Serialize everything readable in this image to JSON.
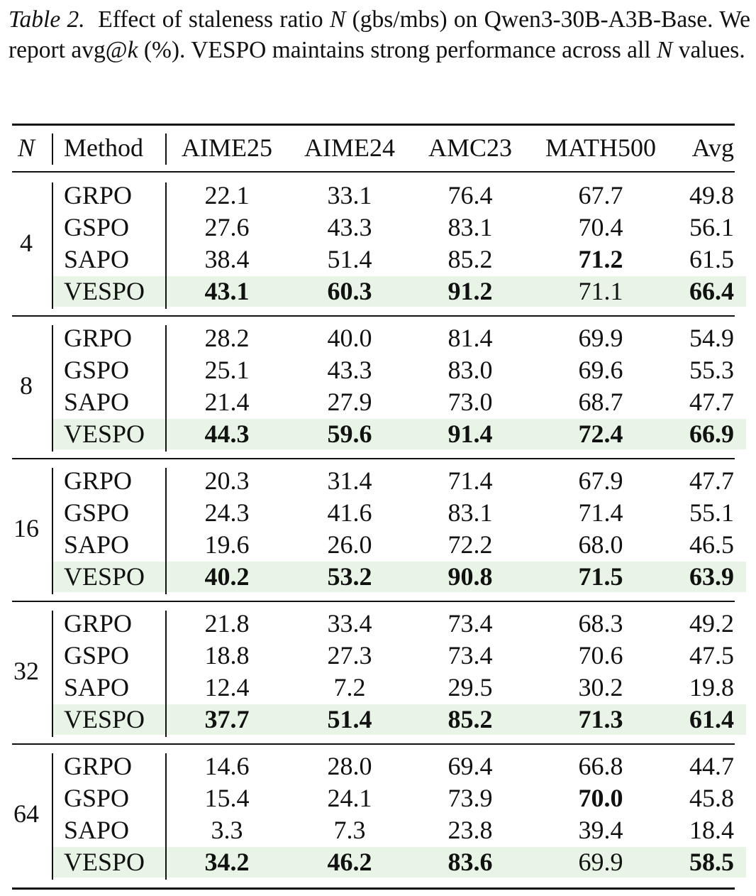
{
  "caption": {
    "label": "Table 2.",
    "parts": [
      "Effect of staleness ratio ",
      "N",
      " (gbs/mbs) on Qwen3-30B-A3B-Base. We report avg@",
      "k",
      " (%). VESPO maintains strong performance across all ",
      "N",
      " values."
    ]
  },
  "table": {
    "header": [
      "N",
      "Method",
      "AIME25",
      "AIME24",
      "AMC23",
      "MATH500",
      "Avg"
    ],
    "groups": [
      {
        "n": "4",
        "rows": [
          {
            "method": "GRPO",
            "values": [
              "22.1",
              "33.1",
              "76.4",
              "67.7",
              "49.8"
            ],
            "bold": [
              false,
              false,
              false,
              false,
              false
            ]
          },
          {
            "method": "GSPO",
            "values": [
              "27.6",
              "43.3",
              "83.1",
              "70.4",
              "56.1"
            ],
            "bold": [
              false,
              false,
              false,
              false,
              false
            ]
          },
          {
            "method": "SAPO",
            "values": [
              "38.4",
              "51.4",
              "85.2",
              "71.2",
              "61.5"
            ],
            "bold": [
              false,
              false,
              false,
              true,
              false
            ]
          },
          {
            "method": "VESPO",
            "values": [
              "43.1",
              "60.3",
              "91.2",
              "71.1",
              "66.4"
            ],
            "bold": [
              true,
              true,
              true,
              false,
              true
            ],
            "highlight": true
          }
        ]
      },
      {
        "n": "8",
        "rows": [
          {
            "method": "GRPO",
            "values": [
              "28.2",
              "40.0",
              "81.4",
              "69.9",
              "54.9"
            ],
            "bold": [
              false,
              false,
              false,
              false,
              false
            ]
          },
          {
            "method": "GSPO",
            "values": [
              "25.1",
              "43.3",
              "83.0",
              "69.6",
              "55.3"
            ],
            "bold": [
              false,
              false,
              false,
              false,
              false
            ]
          },
          {
            "method": "SAPO",
            "values": [
              "21.4",
              "27.9",
              "73.0",
              "68.7",
              "47.7"
            ],
            "bold": [
              false,
              false,
              false,
              false,
              false
            ]
          },
          {
            "method": "VESPO",
            "values": [
              "44.3",
              "59.6",
              "91.4",
              "72.4",
              "66.9"
            ],
            "bold": [
              true,
              true,
              true,
              true,
              true
            ],
            "highlight": true
          }
        ]
      },
      {
        "n": "16",
        "rows": [
          {
            "method": "GRPO",
            "values": [
              "20.3",
              "31.4",
              "71.4",
              "67.9",
              "47.7"
            ],
            "bold": [
              false,
              false,
              false,
              false,
              false
            ]
          },
          {
            "method": "GSPO",
            "values": [
              "24.3",
              "41.6",
              "83.1",
              "71.4",
              "55.1"
            ],
            "bold": [
              false,
              false,
              false,
              false,
              false
            ]
          },
          {
            "method": "SAPO",
            "values": [
              "19.6",
              "26.0",
              "72.2",
              "68.0",
              "46.5"
            ],
            "bold": [
              false,
              false,
              false,
              false,
              false
            ]
          },
          {
            "method": "VESPO",
            "values": [
              "40.2",
              "53.2",
              "90.8",
              "71.5",
              "63.9"
            ],
            "bold": [
              true,
              true,
              true,
              true,
              true
            ],
            "highlight": true
          }
        ]
      },
      {
        "n": "32",
        "rows": [
          {
            "method": "GRPO",
            "values": [
              "21.8",
              "33.4",
              "73.4",
              "68.3",
              "49.2"
            ],
            "bold": [
              false,
              false,
              false,
              false,
              false
            ]
          },
          {
            "method": "GSPO",
            "values": [
              "18.8",
              "27.3",
              "73.4",
              "70.6",
              "47.5"
            ],
            "bold": [
              false,
              false,
              false,
              false,
              false
            ]
          },
          {
            "method": "SAPO",
            "values": [
              "12.4",
              "7.2",
              "29.5",
              "30.2",
              "19.8"
            ],
            "bold": [
              false,
              false,
              false,
              false,
              false
            ]
          },
          {
            "method": "VESPO",
            "values": [
              "37.7",
              "51.4",
              "85.2",
              "71.3",
              "61.4"
            ],
            "bold": [
              true,
              true,
              true,
              true,
              true
            ],
            "highlight": true
          }
        ]
      },
      {
        "n": "64",
        "rows": [
          {
            "method": "GRPO",
            "values": [
              "14.6",
              "28.0",
              "69.4",
              "66.8",
              "44.7"
            ],
            "bold": [
              false,
              false,
              false,
              false,
              false
            ]
          },
          {
            "method": "GSPO",
            "values": [
              "15.4",
              "24.1",
              "73.9",
              "70.0",
              "45.8"
            ],
            "bold": [
              false,
              false,
              false,
              true,
              false
            ]
          },
          {
            "method": "SAPO",
            "values": [
              "3.3",
              "7.3",
              "23.8",
              "39.4",
              "18.4"
            ],
            "bold": [
              false,
              false,
              false,
              false,
              false
            ]
          },
          {
            "method": "VESPO",
            "values": [
              "34.2",
              "46.2",
              "83.6",
              "69.9",
              "58.5"
            ],
            "bold": [
              true,
              true,
              true,
              false,
              true
            ],
            "highlight": true
          }
        ]
      }
    ]
  }
}
